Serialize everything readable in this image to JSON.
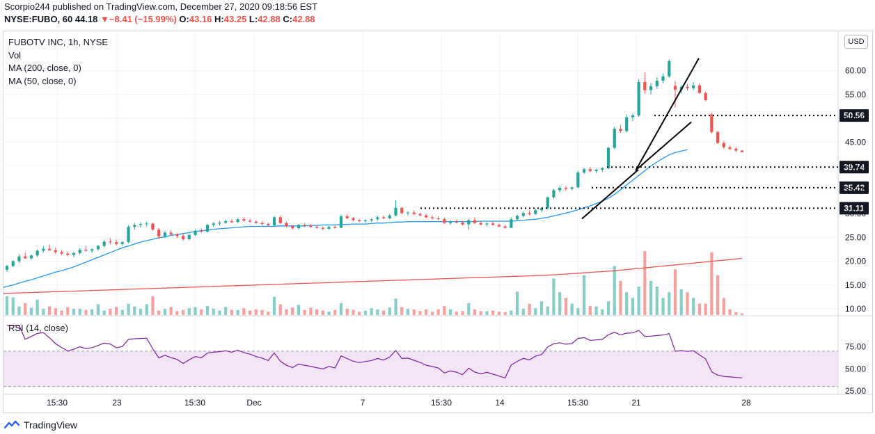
{
  "header": {
    "author": "Scorpio244",
    "published_text": "published on TradingView.com, December 27, 2020 09:18:56 EST",
    "symbol_line": "NYSE:FUBO, 60",
    "last": "44.18",
    "change_arrow": "▼",
    "change": "−8.41 (−15.99%)",
    "o_label": "O:",
    "o": "43.16",
    "h_label": "H:",
    "h": "43.25",
    "l_label": "L:",
    "l": "42.88",
    "c_label": "C:",
    "c": "42.88"
  },
  "legend": {
    "title": "FUBOTV INC, 1h, NYSE",
    "vol": "Vol",
    "ma200": "MA (200, close, 0)",
    "ma50": "MA (50, close, 0)"
  },
  "rsi_pane": {
    "label": "RSI (14, close)"
  },
  "currency_badge": "USD",
  "brand": "TradingView",
  "colors": {
    "up": "#26a69a",
    "down": "#ef5350",
    "ma50": "#2196f3",
    "ma200": "#ef5350",
    "rsi": "#7b1fa2",
    "rsi_band": "#f3e5f5"
  },
  "chart_data": {
    "type": "candlestick",
    "x_ticks": [
      "15:30",
      "23",
      "15:30",
      "Dec",
      "7",
      "15:30",
      "14",
      "15:30",
      "21",
      "28"
    ],
    "y_ticks": [
      "10.00",
      "15.00",
      "20.00",
      "25.00",
      "30.00",
      "35.00",
      "40.00",
      "45.00",
      "50.00",
      "55.00",
      "60.00"
    ],
    "price_levels": [
      "50.56",
      "39.74",
      "35.42",
      "31.11"
    ],
    "rsi_ticks": [
      "25.00",
      "50.00",
      "75.00"
    ],
    "rsi_band": [
      30,
      70
    ],
    "candles": [
      [
        18.2,
        19.2,
        17.8,
        19.0
      ],
      [
        19.0,
        20.2,
        18.7,
        20.0
      ],
      [
        20.0,
        21.5,
        19.6,
        21.0
      ],
      [
        21.0,
        21.8,
        20.4,
        20.6
      ],
      [
        20.6,
        21.4,
        20.3,
        21.2
      ],
      [
        21.2,
        22.5,
        20.9,
        22.2
      ],
      [
        22.2,
        23.2,
        21.8,
        22.6
      ],
      [
        22.6,
        23.5,
        22.1,
        22.3
      ],
      [
        22.3,
        22.9,
        21.5,
        21.9
      ],
      [
        21.9,
        22.3,
        21.3,
        21.6
      ],
      [
        21.6,
        22.0,
        21.0,
        21.3
      ],
      [
        21.3,
        21.9,
        20.8,
        21.7
      ],
      [
        21.7,
        22.8,
        21.4,
        22.4
      ],
      [
        22.4,
        23.2,
        22.0,
        22.2
      ],
      [
        22.2,
        22.7,
        21.7,
        22.5
      ],
      [
        22.5,
        23.4,
        22.2,
        23.2
      ],
      [
        23.2,
        24.4,
        22.9,
        24.1
      ],
      [
        24.1,
        24.8,
        23.6,
        24.0
      ],
      [
        24.0,
        24.5,
        23.3,
        23.6
      ],
      [
        23.6,
        24.2,
        23.2,
        24.0
      ],
      [
        24.0,
        27.6,
        23.8,
        27.2
      ],
      [
        27.2,
        28.0,
        26.6,
        27.6
      ],
      [
        27.6,
        28.2,
        27.0,
        27.8
      ],
      [
        27.8,
        28.3,
        27.3,
        27.9
      ],
      [
        27.9,
        28.0,
        26.4,
        26.6
      ],
      [
        26.6,
        26.9,
        24.6,
        25.2
      ],
      [
        25.2,
        26.4,
        24.9,
        26.0
      ],
      [
        26.0,
        26.5,
        25.4,
        25.6
      ],
      [
        25.6,
        25.9,
        24.9,
        25.3
      ],
      [
        25.3,
        25.7,
        24.3,
        24.6
      ],
      [
        24.6,
        25.8,
        24.4,
        25.5
      ],
      [
        25.5,
        26.7,
        25.3,
        26.4
      ],
      [
        26.4,
        26.9,
        26.0,
        26.2
      ],
      [
        26.2,
        27.8,
        26.0,
        27.6
      ],
      [
        27.6,
        28.2,
        27.2,
        27.9
      ],
      [
        27.9,
        28.5,
        27.5,
        28.1
      ],
      [
        28.1,
        28.7,
        27.8,
        28.4
      ],
      [
        28.4,
        28.8,
        28.0,
        28.2
      ],
      [
        28.2,
        29.0,
        28.0,
        28.8
      ],
      [
        28.8,
        29.2,
        28.3,
        28.5
      ],
      [
        28.5,
        28.9,
        28.1,
        28.3
      ],
      [
        28.3,
        28.6,
        27.9,
        28.0
      ],
      [
        28.0,
        28.4,
        27.5,
        27.8
      ],
      [
        27.8,
        28.1,
        27.3,
        27.5
      ],
      [
        27.5,
        29.5,
        27.3,
        29.2
      ],
      [
        29.2,
        29.6,
        27.8,
        28.0
      ],
      [
        28.0,
        28.3,
        27.1,
        27.3
      ],
      [
        27.3,
        27.6,
        26.6,
        26.9
      ],
      [
        26.9,
        27.8,
        26.7,
        27.6
      ],
      [
        27.6,
        28.0,
        27.2,
        27.4
      ],
      [
        27.4,
        27.8,
        27.0,
        27.2
      ],
      [
        27.2,
        27.5,
        26.8,
        27.0
      ],
      [
        27.0,
        27.3,
        26.5,
        26.8
      ],
      [
        26.8,
        27.4,
        26.6,
        27.2
      ],
      [
        27.2,
        27.5,
        26.8,
        27.0
      ],
      [
        27.0,
        29.8,
        26.9,
        29.4
      ],
      [
        29.4,
        29.9,
        28.8,
        29.0
      ],
      [
        29.0,
        29.3,
        28.4,
        28.6
      ],
      [
        28.6,
        28.9,
        28.2,
        28.4
      ],
      [
        28.4,
        28.8,
        28.0,
        28.6
      ],
      [
        28.6,
        29.0,
        28.2,
        28.8
      ],
      [
        28.8,
        29.5,
        28.5,
        29.2
      ],
      [
        29.2,
        29.6,
        28.8,
        29.0
      ],
      [
        29.0,
        29.9,
        28.8,
        29.6
      ],
      [
        29.6,
        32.8,
        29.4,
        31.2
      ],
      [
        31.2,
        31.4,
        29.8,
        30.1
      ],
      [
        30.1,
        30.5,
        29.6,
        30.2
      ],
      [
        30.2,
        30.7,
        29.7,
        29.9
      ],
      [
        29.9,
        30.2,
        29.4,
        29.6
      ],
      [
        29.6,
        29.9,
        29.0,
        29.2
      ],
      [
        29.2,
        29.6,
        28.7,
        29.0
      ],
      [
        29.0,
        29.4,
        28.6,
        28.8
      ],
      [
        28.8,
        29.1,
        27.8,
        28.0
      ],
      [
        28.0,
        28.6,
        27.6,
        28.3
      ],
      [
        28.3,
        28.7,
        27.9,
        28.1
      ],
      [
        28.1,
        28.4,
        27.5,
        27.7
      ],
      [
        27.7,
        28.9,
        26.6,
        28.6
      ],
      [
        28.6,
        29.2,
        27.8,
        28.0
      ],
      [
        28.0,
        28.4,
        27.5,
        27.7
      ],
      [
        27.7,
        28.2,
        27.3,
        27.9
      ],
      [
        27.9,
        28.3,
        27.5,
        27.6
      ],
      [
        27.6,
        27.9,
        27.1,
        27.3
      ],
      [
        27.3,
        27.6,
        26.8,
        27.0
      ],
      [
        27.0,
        29.2,
        26.9,
        28.8
      ],
      [
        28.8,
        29.8,
        28.6,
        29.5
      ],
      [
        29.5,
        30.4,
        29.2,
        30.1
      ],
      [
        30.1,
        30.6,
        29.6,
        29.9
      ],
      [
        29.9,
        31.0,
        29.7,
        30.7
      ],
      [
        30.7,
        31.3,
        30.3,
        31.1
      ],
      [
        31.1,
        33.6,
        30.9,
        33.4
      ],
      [
        33.4,
        35.2,
        33.1,
        34.9
      ],
      [
        34.9,
        35.9,
        34.5,
        35.4
      ],
      [
        35.4,
        35.8,
        34.8,
        35.2
      ],
      [
        35.2,
        35.6,
        34.9,
        35.5
      ],
      [
        35.5,
        39.0,
        35.3,
        38.6
      ],
      [
        38.6,
        39.6,
        38.3,
        39.3
      ],
      [
        39.3,
        39.8,
        38.7,
        38.9
      ],
      [
        38.9,
        39.4,
        38.5,
        39.2
      ],
      [
        39.2,
        39.7,
        38.7,
        39.5
      ],
      [
        39.5,
        44.0,
        39.3,
        43.8
      ],
      [
        43.8,
        48.2,
        43.5,
        47.8
      ],
      [
        47.8,
        48.6,
        46.9,
        47.3
      ],
      [
        47.3,
        50.8,
        47.0,
        50.2
      ],
      [
        50.2,
        51.0,
        49.4,
        50.6
      ],
      [
        50.6,
        58.2,
        50.3,
        57.6
      ],
      [
        57.6,
        59.6,
        55.1,
        55.9
      ],
      [
        55.9,
        57.4,
        55.0,
        56.7
      ],
      [
        56.7,
        58.6,
        56.2,
        57.9
      ],
      [
        57.9,
        59.4,
        57.3,
        58.8
      ],
      [
        58.8,
        62.4,
        58.5,
        62.0
      ],
      [
        56.8,
        57.8,
        52.2,
        56.0
      ],
      [
        56.0,
        57.0,
        55.2,
        56.6
      ],
      [
        56.6,
        57.2,
        55.8,
        56.3
      ],
      [
        56.3,
        57.6,
        55.9,
        56.9
      ],
      [
        56.9,
        57.3,
        55.1,
        55.3
      ],
      [
        55.3,
        55.6,
        53.6,
        53.8
      ],
      [
        50.8,
        51.1,
        46.8,
        47.1
      ],
      [
        47.1,
        47.4,
        44.6,
        44.8
      ],
      [
        44.8,
        45.2,
        43.6,
        43.9
      ],
      [
        43.9,
        44.2,
        43.3,
        43.6
      ],
      [
        43.6,
        43.9,
        42.9,
        43.2
      ],
      [
        43.2,
        43.3,
        42.8,
        42.9
      ]
    ],
    "volume": [
      3.3,
      3.1,
      1.5,
      2.1,
      1.3,
      2.7,
      1.1,
      1.5,
      1.2,
      0.8,
      1.4,
      1.1,
      1.1,
      0.9,
      1.0,
      1.9,
      0.8,
      1.1,
      1.4,
      0.9,
      2.0,
      1.5,
      1.1,
      1.9,
      3.3,
      0.8,
      1.1,
      1.4,
      0.7,
      0.9,
      1.2,
      1.4,
      1.0,
      1.6,
      1.1,
      0.8,
      1.4,
      0.9,
      0.9,
      1.2,
      0.8,
      1.0,
      0.9,
      0.6,
      3.2,
      1.9,
      1.0,
      1.3,
      1.8,
      0.9,
      1.3,
      1.0,
      0.8,
      0.6,
      0.9,
      2.1,
      1.1,
      0.9,
      0.6,
      0.8,
      1.2,
      1.0,
      0.8,
      1.3,
      2.9,
      1.4,
      1.1,
      1.0,
      0.7,
      1.0,
      0.6,
      1.0,
      1.6,
      1.0,
      0.6,
      0.7,
      2.1,
      1.0,
      0.7,
      0.7,
      0.8,
      0.6,
      0.5,
      0.8,
      4.1,
      1.1,
      2.0,
      1.2,
      2.4,
      1.5,
      6.4,
      4.0,
      3.0,
      2.0,
      1.2,
      7.0,
      1.6,
      1.5,
      1.0,
      2.4,
      8.6,
      6.0,
      4.0,
      3.0,
      5.0,
      11.2,
      6.0,
      5.0,
      3.0,
      4.0,
      8.0,
      4.5,
      4.0,
      3.0,
      2.0,
      2.0,
      11.0,
      7.0,
      3.0,
      1.0,
      0.5,
      0.3
    ],
    "ma50": [
      14.7,
      15.0,
      15.4,
      15.8,
      16.1,
      16.5,
      16.9,
      17.3,
      17.7,
      18.0,
      18.4,
      18.8,
      19.3,
      19.8,
      20.3,
      20.8,
      21.3,
      21.8,
      22.3,
      22.8,
      23.2,
      23.6,
      24.0,
      24.3,
      24.6,
      24.9,
      25.1,
      25.4,
      25.6,
      25.8,
      26.0,
      26.2,
      26.4,
      26.5,
      26.7,
      26.8,
      26.9,
      27.0,
      27.1,
      27.2,
      27.3,
      27.3,
      27.3,
      27.3,
      27.3,
      27.4,
      27.4,
      27.4,
      27.4,
      27.4,
      27.5,
      27.5,
      27.6,
      27.6,
      27.6,
      27.7,
      27.7,
      27.8,
      27.8,
      27.8,
      27.9,
      28.0,
      28.0,
      28.1,
      28.2,
      28.2,
      28.3,
      28.3,
      28.3,
      28.3,
      28.3,
      28.3,
      28.3,
      28.3,
      28.3,
      28.3,
      28.3,
      28.3,
      28.4,
      28.4,
      28.4,
      28.4,
      28.4,
      28.4,
      28.5,
      28.6,
      28.7,
      28.8,
      29.0,
      29.2,
      29.5,
      29.8,
      30.1,
      30.4,
      30.8,
      31.2,
      31.6,
      32.1,
      32.6,
      33.2,
      34.0,
      35.0,
      36.0,
      37.0,
      38.0,
      39.0,
      40.0,
      40.8,
      41.6,
      42.3,
      42.8,
      43.1,
      43.4
    ]
  }
}
